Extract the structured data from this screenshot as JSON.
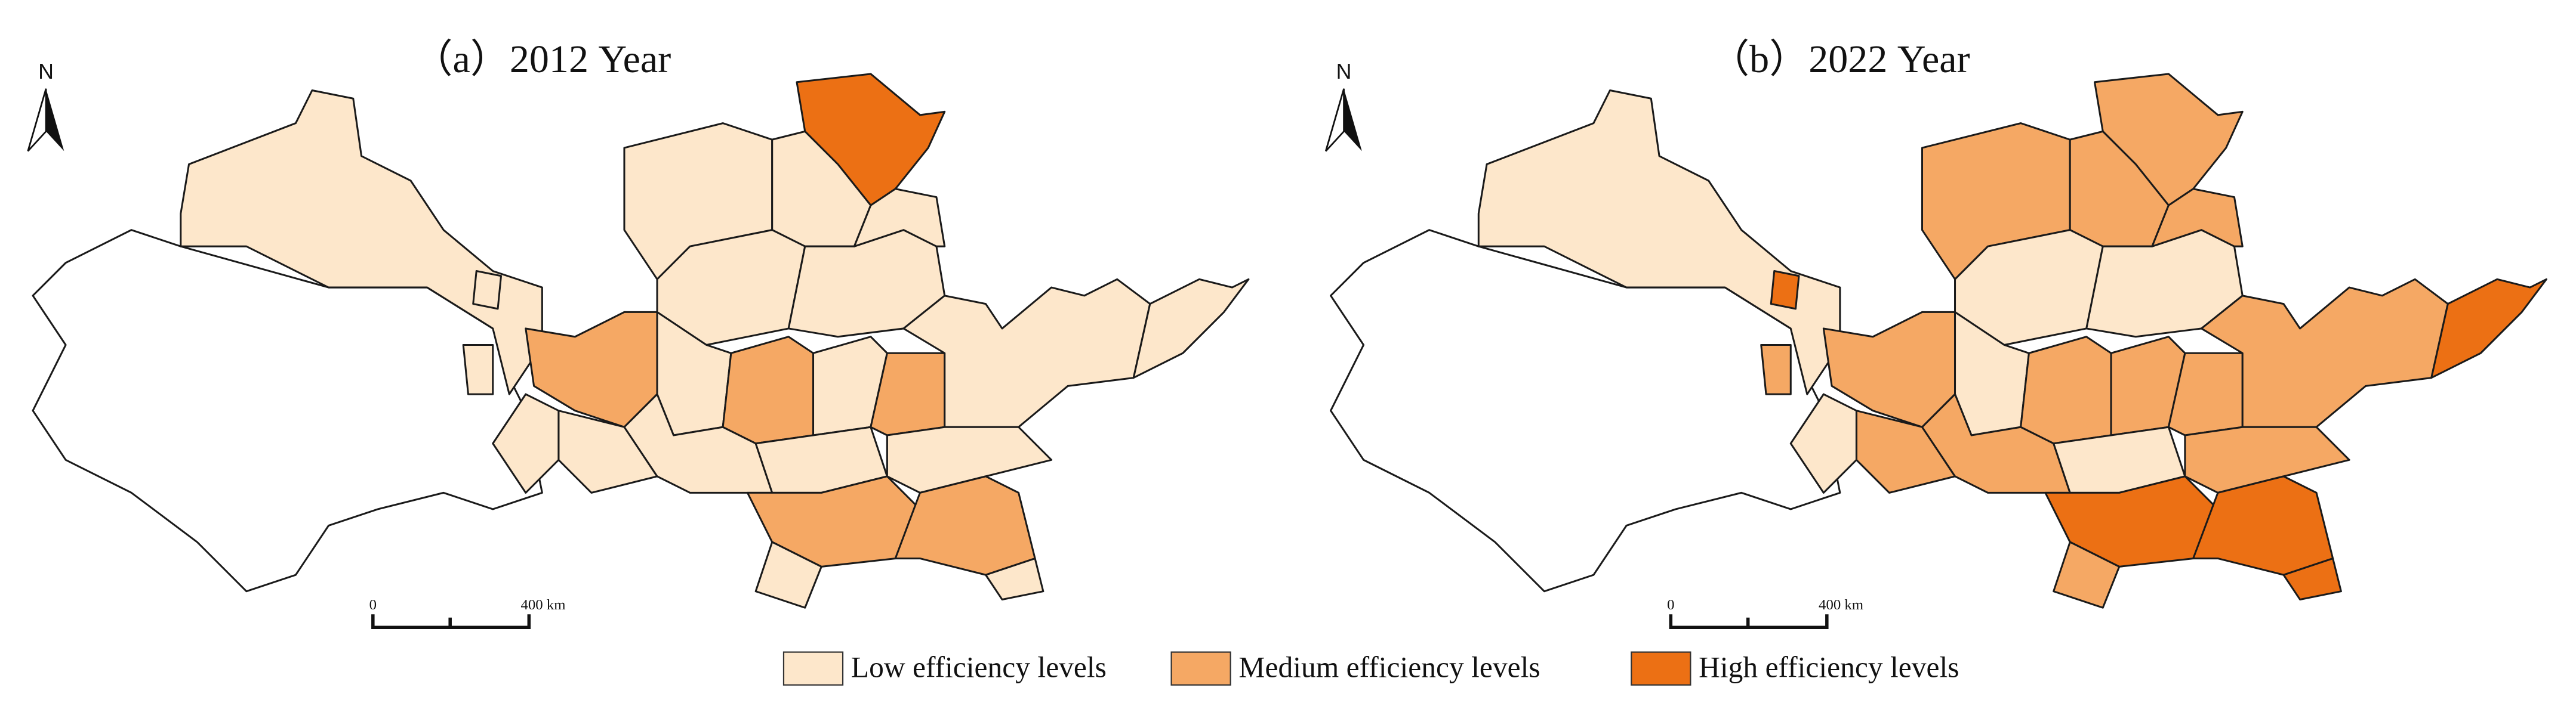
{
  "panels": [
    {
      "title": "（a）2012 Year"
    },
    {
      "title": "（b）2022 Year"
    }
  ],
  "north_label": "N",
  "scale_bar": {
    "start_label": "0",
    "end_label": "400 km"
  },
  "legend": {
    "items": [
      {
        "label": "Low efficiency levels",
        "color": "#fde7cb"
      },
      {
        "label": "Medium efficiency levels",
        "color": "#f5a864"
      },
      {
        "label": "High efficiency levels",
        "color": "#ec7014"
      }
    ]
  }
}
